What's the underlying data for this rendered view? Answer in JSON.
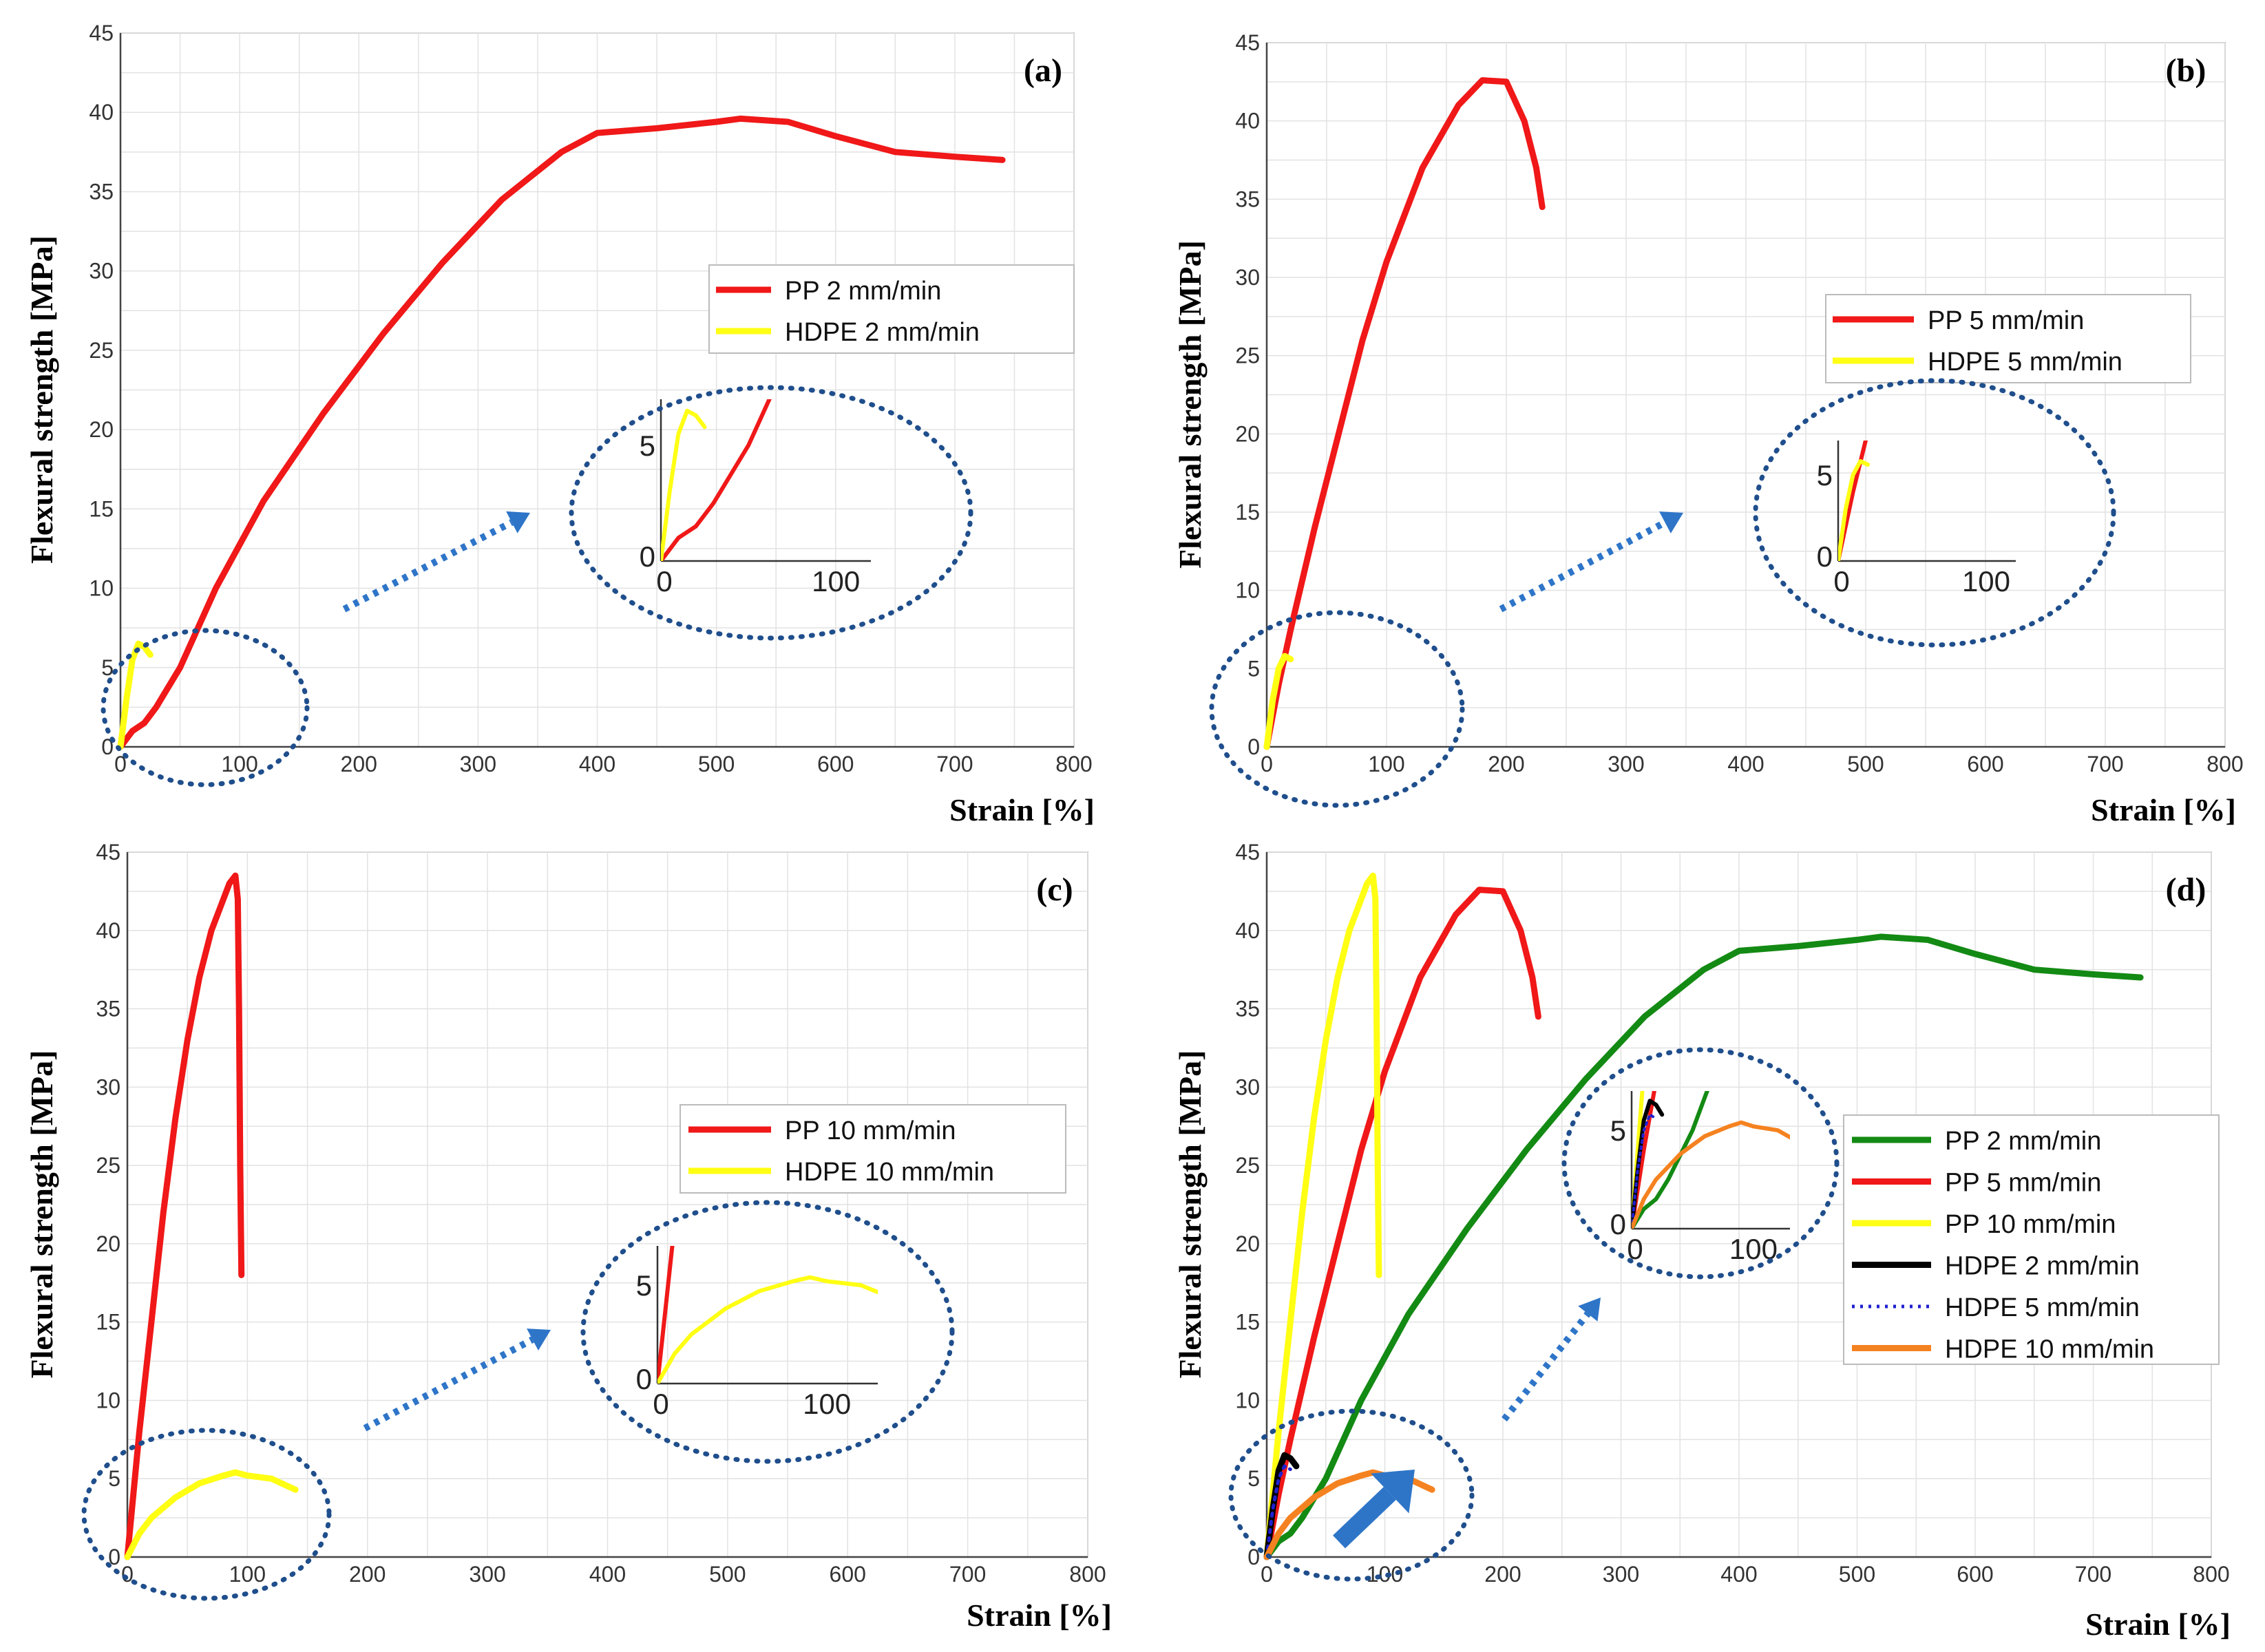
{
  "colors": {
    "pp": "#f01818",
    "hdpe": "#ffff14",
    "green": "#138a13",
    "black": "#000000",
    "blue_dotted": "#2020d0",
    "orange": "#f58220",
    "circle": "#1f4e8c",
    "arrow": "#2e75c8",
    "grid": "#e2e2e2"
  },
  "chart_data": [
    {
      "panel": "(a)",
      "type": "line",
      "xlabel": "Strain [%]",
      "ylabel": "Flexural strength [MPa]",
      "xlim": [
        0,
        800
      ],
      "ylim": [
        0,
        45
      ],
      "xticks": [
        "0",
        "100",
        "200",
        "300",
        "400",
        "500",
        "600",
        "700",
        "800"
      ],
      "yticks": [
        "0",
        "5",
        "10",
        "15",
        "20",
        "25",
        "30",
        "35",
        "40",
        "45"
      ],
      "legend_position": "middle-right",
      "series": [
        {
          "name": "PP 2 mm/min",
          "color": "#f01818",
          "x": [
            0,
            10,
            20,
            30,
            50,
            80,
            120,
            170,
            220,
            270,
            320,
            370,
            400,
            450,
            500,
            520,
            560,
            600,
            650,
            700,
            740
          ],
          "y": [
            0,
            1,
            1.5,
            2.5,
            5,
            10,
            15.5,
            21,
            26,
            30.5,
            34.5,
            37.5,
            38.7,
            39,
            39.4,
            39.6,
            39.4,
            38.5,
            37.5,
            37.2,
            37
          ]
        },
        {
          "name": "HDPE 2 mm/min",
          "color": "#ffff14",
          "x": [
            0,
            5,
            10,
            15,
            20,
            25
          ],
          "y": [
            0,
            3,
            5.5,
            6.5,
            6.3,
            5.8
          ]
        }
      ],
      "inset": {
        "xticks": [
          "0",
          "100"
        ],
        "yticks": [
          "0",
          "5"
        ]
      }
    },
    {
      "panel": "(b)",
      "type": "line",
      "xlabel": "Strain [%]",
      "ylabel": "Flexural strength [MPa]",
      "xlim": [
        0,
        800
      ],
      "ylim": [
        0,
        45
      ],
      "xticks": [
        "0",
        "100",
        "200",
        "300",
        "400",
        "500",
        "600",
        "700",
        "800"
      ],
      "yticks": [
        "0",
        "5",
        "10",
        "15",
        "20",
        "25",
        "30",
        "35",
        "40",
        "45"
      ],
      "legend_position": "middle-right",
      "series": [
        {
          "name": "PP 5 mm/min",
          "color": "#f01818",
          "x": [
            0,
            10,
            20,
            40,
            60,
            80,
            100,
            130,
            160,
            180,
            200,
            215,
            225,
            230
          ],
          "y": [
            0,
            4,
            7.5,
            14,
            20,
            26,
            31,
            37,
            41,
            42.6,
            42.5,
            40,
            37,
            34.5
          ]
        },
        {
          "name": "HDPE 5 mm/min",
          "color": "#ffff14",
          "x": [
            0,
            5,
            10,
            15,
            20
          ],
          "y": [
            0,
            3,
            5,
            5.8,
            5.6
          ]
        }
      ],
      "inset": {
        "xticks": [
          "0",
          "100"
        ],
        "yticks": [
          "0",
          "5"
        ]
      }
    },
    {
      "panel": "(c)",
      "type": "line",
      "xlabel": "Strain [%]",
      "ylabel": "Flexural strength [MPa]",
      "xlim": [
        0,
        800
      ],
      "ylim": [
        0,
        45
      ],
      "xticks": [
        "0",
        "100",
        "200",
        "300",
        "400",
        "500",
        "600",
        "700",
        "800"
      ],
      "yticks": [
        "0",
        "5",
        "10",
        "15",
        "20",
        "25",
        "30",
        "35",
        "40",
        "45"
      ],
      "legend_position": "middle-right",
      "series": [
        {
          "name": "PP 10 mm/min",
          "color": "#f01818",
          "x": [
            0,
            10,
            20,
            30,
            40,
            50,
            60,
            70,
            80,
            85,
            90,
            92,
            93,
            94,
            95
          ],
          "y": [
            0,
            8,
            15,
            22,
            28,
            33,
            37,
            40,
            42,
            43,
            43.5,
            42,
            35,
            25,
            18
          ]
        },
        {
          "name": "HDPE 10 mm/min",
          "color": "#ffff14",
          "x": [
            0,
            10,
            20,
            40,
            60,
            80,
            90,
            100,
            120,
            140
          ],
          "y": [
            0,
            1.5,
            2.5,
            3.8,
            4.7,
            5.2,
            5.4,
            5.2,
            5,
            4.3
          ]
        }
      ],
      "inset": {
        "xticks": [
          "0",
          "100"
        ],
        "yticks": [
          "0",
          "5"
        ]
      }
    },
    {
      "panel": "(d)",
      "type": "line",
      "xlabel": "Strain [%]",
      "ylabel": "Flexural strength [MPa]",
      "xlim": [
        0,
        800
      ],
      "ylim": [
        0,
        45
      ],
      "xticks": [
        "0",
        "100",
        "200",
        "300",
        "400",
        "500",
        "600",
        "700",
        "800"
      ],
      "yticks": [
        "0",
        "5",
        "10",
        "15",
        "20",
        "25",
        "30",
        "35",
        "40",
        "45"
      ],
      "legend_position": "right",
      "series": [
        {
          "name": "PP 2 mm/min",
          "color": "#138a13",
          "style": "solid",
          "x": [
            0,
            10,
            20,
            30,
            50,
            80,
            120,
            170,
            220,
            270,
            320,
            370,
            400,
            450,
            500,
            520,
            560,
            600,
            650,
            700,
            740
          ],
          "y": [
            0,
            1,
            1.5,
            2.5,
            5,
            10,
            15.5,
            21,
            26,
            30.5,
            34.5,
            37.5,
            38.7,
            39,
            39.4,
            39.6,
            39.4,
            38.5,
            37.5,
            37.2,
            37
          ]
        },
        {
          "name": "PP 5 mm/min",
          "color": "#f01818",
          "style": "solid",
          "x": [
            0,
            10,
            20,
            40,
            60,
            80,
            100,
            130,
            160,
            180,
            200,
            215,
            225,
            230
          ],
          "y": [
            0,
            4,
            7.5,
            14,
            20,
            26,
            31,
            37,
            41,
            42.6,
            42.5,
            40,
            37,
            34.5
          ]
        },
        {
          "name": "PP 10 mm/min",
          "color": "#ffff14",
          "style": "solid",
          "x": [
            0,
            10,
            20,
            30,
            40,
            50,
            60,
            70,
            80,
            85,
            90,
            92,
            93,
            94,
            95
          ],
          "y": [
            0,
            8,
            15,
            22,
            28,
            33,
            37,
            40,
            42,
            43,
            43.5,
            42,
            35,
            25,
            18
          ]
        },
        {
          "name": "HDPE 2 mm/min",
          "color": "#000000",
          "style": "solid",
          "x": [
            0,
            5,
            10,
            15,
            20,
            25
          ],
          "y": [
            0,
            3,
            5.5,
            6.5,
            6.3,
            5.8
          ]
        },
        {
          "name": "HDPE 5 mm/min",
          "color": "#2020d0",
          "style": "dotted",
          "x": [
            0,
            5,
            10,
            15,
            20
          ],
          "y": [
            0,
            3,
            5,
            5.8,
            5.6
          ]
        },
        {
          "name": "HDPE 10 mm/min",
          "color": "#f58220",
          "style": "solid",
          "x": [
            0,
            10,
            20,
            40,
            60,
            80,
            90,
            100,
            120,
            140
          ],
          "y": [
            0,
            1.5,
            2.5,
            3.8,
            4.7,
            5.2,
            5.4,
            5.2,
            5,
            4.3
          ]
        }
      ],
      "inset": {
        "xticks": [
          "0",
          "100"
        ],
        "yticks": [
          "0",
          "5"
        ]
      }
    }
  ]
}
